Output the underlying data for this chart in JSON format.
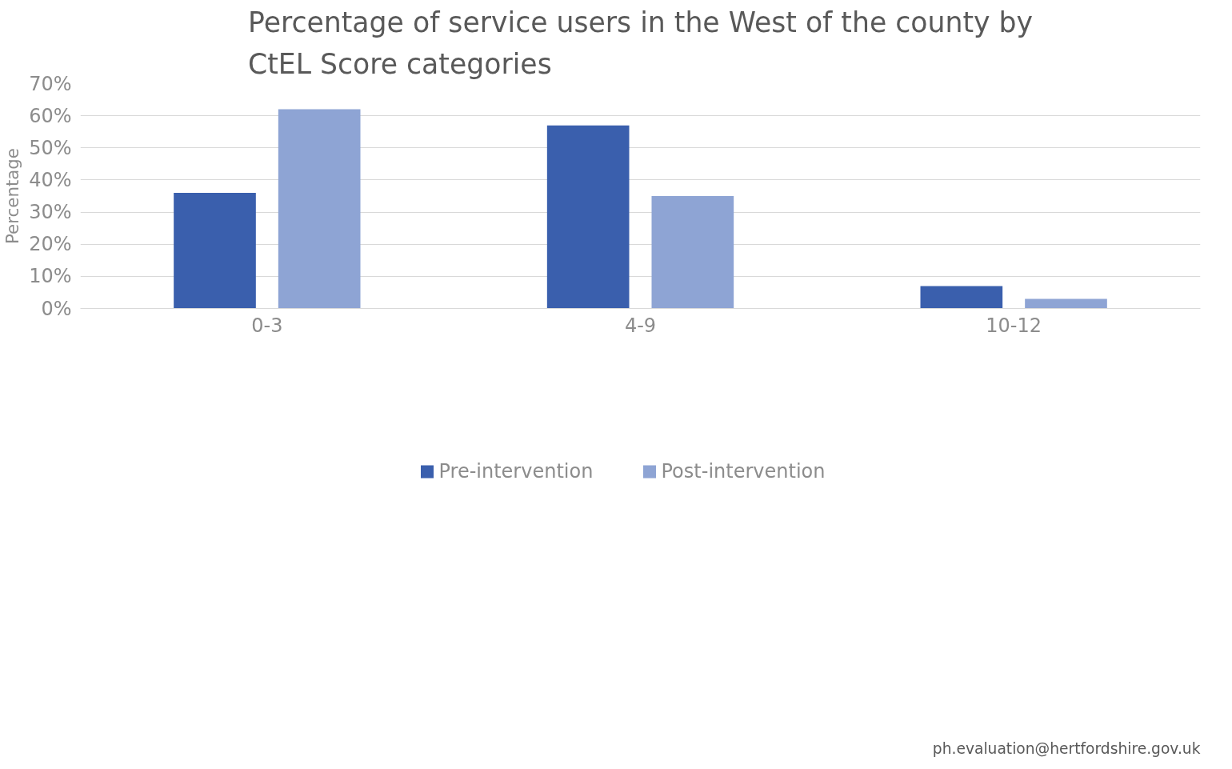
{
  "chart_data": {
    "type": "bar",
    "title": "Percentage of service users in the West of the county by\nCtEL Score categories",
    "ylabel": "Percentage",
    "categories": [
      "0-3",
      "4-9",
      "10-12"
    ],
    "series": [
      {
        "name": "Pre-intervention",
        "color": "#3a5fad",
        "values": [
          36,
          57,
          7
        ]
      },
      {
        "name": "Post-intervention",
        "color": "#8ea4d4",
        "values": [
          62,
          35,
          3
        ]
      }
    ],
    "ylim": [
      0,
      70
    ],
    "yticks": [
      {
        "value": 0,
        "label": "0%"
      },
      {
        "value": 10,
        "label": "10%"
      },
      {
        "value": 20,
        "label": "20%"
      },
      {
        "value": 30,
        "label": "30%"
      },
      {
        "value": 40,
        "label": "40%"
      },
      {
        "value": 50,
        "label": "50%"
      },
      {
        "value": 60,
        "label": "60%"
      },
      {
        "value": 70,
        "label": "70%"
      }
    ],
    "grid": "y",
    "legend": "bottom",
    "annotations": [
      "ph.evaluation@hertfordshire.gov.uk"
    ]
  }
}
